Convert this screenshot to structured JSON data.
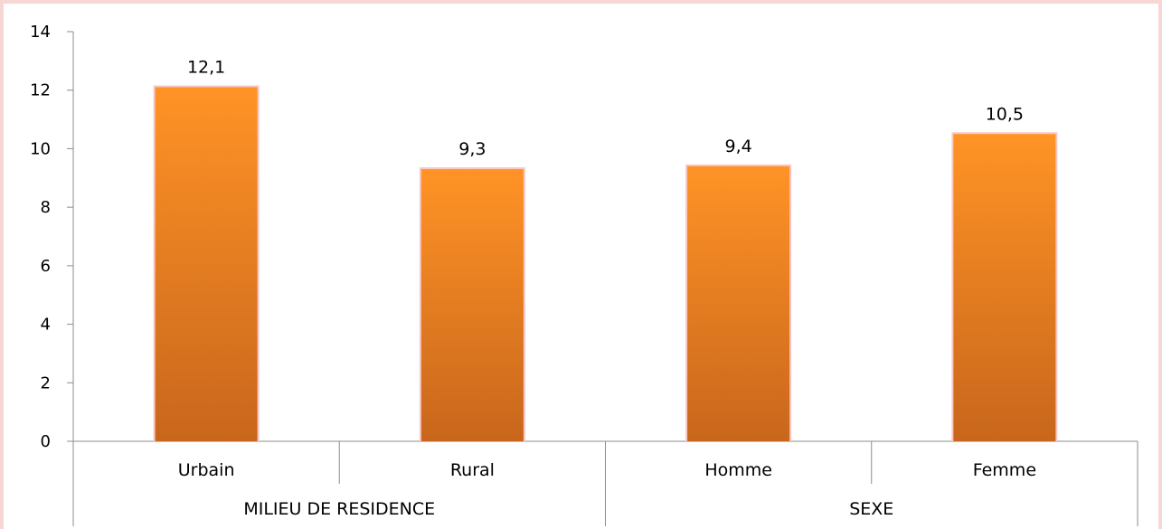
{
  "chart_data": {
    "type": "bar",
    "categories": [
      "Urbain",
      "Rural",
      "Homme",
      "Femme"
    ],
    "values": [
      12.1,
      9.3,
      9.4,
      10.5
    ],
    "data_labels": [
      "12,1",
      "9,3",
      "9,4",
      "10,5"
    ],
    "groups": [
      {
        "label": "MILIEU DE RESIDENCE",
        "categories": [
          "Urbain",
          "Rural"
        ]
      },
      {
        "label": "SEXE",
        "categories": [
          "Homme",
          "Femme"
        ]
      }
    ],
    "title": "",
    "xlabel": "",
    "ylabel": "",
    "ylim": [
      0,
      14
    ],
    "yticks": [
      0,
      2,
      4,
      6,
      8,
      10,
      12,
      14
    ],
    "grid": false,
    "legend": "none",
    "colors": {
      "bar_top": "#ff9326",
      "bar_bottom": "#c8661c",
      "bar_glow": "#f9c6c3",
      "axis": "#8c8c8c",
      "frame": "#f6d7d4"
    }
  }
}
